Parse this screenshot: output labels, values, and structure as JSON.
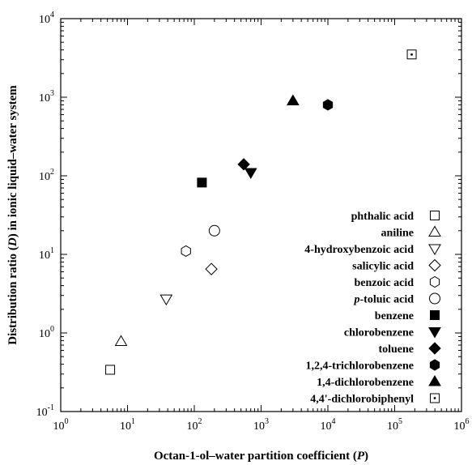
{
  "chart_data": {
    "type": "scatter",
    "xlabel": [
      "Octan-1-ol–water partition coefficient (",
      "P",
      ")"
    ],
    "ylabel": [
      "Distribution ratio (",
      "D",
      ") in ionic liquid–water system"
    ],
    "x_scale": "log",
    "y_scale": "log",
    "xlim": [
      1,
      1000000
    ],
    "ylim": [
      0.1,
      10000
    ],
    "x_ticks": [
      {
        "base": "10",
        "exp": "0",
        "value": 1
      },
      {
        "base": "10",
        "exp": "1",
        "value": 10
      },
      {
        "base": "10",
        "exp": "2",
        "value": 100
      },
      {
        "base": "10",
        "exp": "3",
        "value": 1000
      },
      {
        "base": "10",
        "exp": "4",
        "value": 10000
      },
      {
        "base": "10",
        "exp": "5",
        "value": 100000
      },
      {
        "base": "10",
        "exp": "6",
        "value": 1000000
      }
    ],
    "y_ticks": [
      {
        "base": "10",
        "exp": "-1",
        "value": 0.1
      },
      {
        "base": "10",
        "exp": "0",
        "value": 1
      },
      {
        "base": "10",
        "exp": "1",
        "value": 10
      },
      {
        "base": "10",
        "exp": "2",
        "value": 100
      },
      {
        "base": "10",
        "exp": "3",
        "value": 1000
      },
      {
        "base": "10",
        "exp": "4",
        "value": 10000
      }
    ],
    "grid": false,
    "legend_position": "right",
    "series": [
      {
        "name": "phthalic acid",
        "marker": "square-open",
        "x": 5.5,
        "y": 0.34
      },
      {
        "name": "aniline",
        "marker": "triangle-up-open",
        "x": 8,
        "y": 0.78
      },
      {
        "name": "4-hydroxybenzoic acid",
        "marker": "triangle-down-open",
        "x": 38,
        "y": 2.7
      },
      {
        "name": "salicylic acid",
        "marker": "diamond-open",
        "x": 180,
        "y": 6.5
      },
      {
        "name": "benzoic acid",
        "marker": "hexagon-open",
        "x": 75,
        "y": 11
      },
      {
        "name": [
          "p",
          "-toluic acid"
        ],
        "marker": "circle-open",
        "x": 200,
        "y": 20
      },
      {
        "name": "benzene",
        "marker": "square-filled",
        "x": 130,
        "y": 82
      },
      {
        "name": "chlorobenzene",
        "marker": "triangle-down-filled",
        "x": 700,
        "y": 110
      },
      {
        "name": "toluene",
        "marker": "diamond-filled",
        "x": 550,
        "y": 140
      },
      {
        "name": "1,2,4-trichlorobenzene",
        "marker": "hexagon-filled",
        "x": 10000,
        "y": 800
      },
      {
        "name": "1,4-dichlorobenzene",
        "marker": "triangle-up-filled",
        "x": 3000,
        "y": 900
      },
      {
        "name": "4,4'-dichlorobiphenyl",
        "marker": "square-dot",
        "x": 180000,
        "y": 3500
      }
    ]
  }
}
